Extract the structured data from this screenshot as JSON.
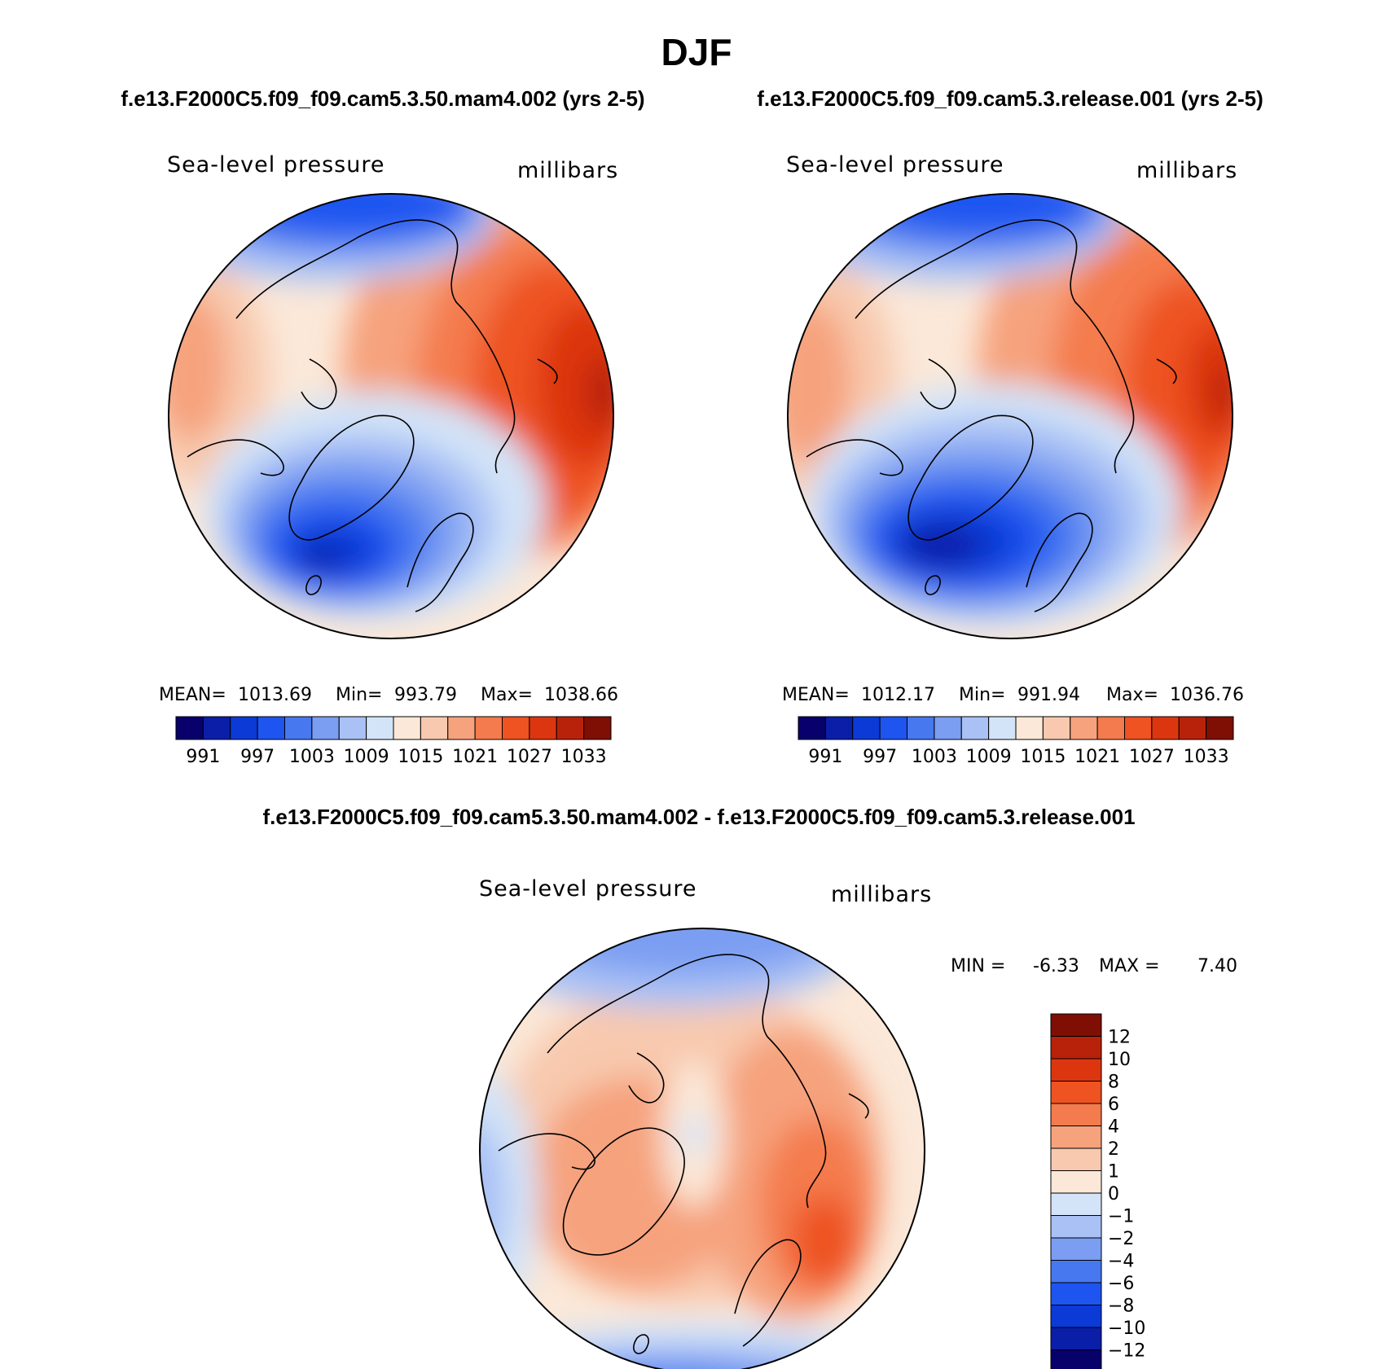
{
  "header": {
    "season": "DJF",
    "left_case": "f.e13.F2000C5.f09_f09.cam5.3.50.mam4.002 (yrs 2-5)",
    "right_case": "f.e13.F2000C5.f09_f09.cam5.3.release.001 (yrs 2-5)",
    "diff_title": "f.e13.F2000C5.f09_f09.cam5.3.50.mam4.002 - f.e13.F2000C5.f09_f09.cam5.3.release.001"
  },
  "chart_data": [
    {
      "type": "heatmap",
      "projection": "polar-stereographic-north",
      "variable": "Sea-level pressure",
      "units": "millibars",
      "stats": {
        "mean_label": "MEAN=",
        "mean": "1013.69",
        "min_label": "Min=",
        "min": "993.79",
        "max_label": "Max=",
        "max": "1038.66"
      },
      "colorbar": {
        "orientation": "horizontal",
        "labels": [
          "991",
          "997",
          "1003",
          "1009",
          "1015",
          "1021",
          "1027",
          "1033"
        ]
      }
    },
    {
      "type": "heatmap",
      "projection": "polar-stereographic-north",
      "variable": "Sea-level pressure",
      "units": "millibars",
      "stats": {
        "mean_label": "MEAN=",
        "mean": "1012.17",
        "min_label": "Min=",
        "min": "991.94",
        "max_label": "Max=",
        "max": "1036.76"
      },
      "colorbar": {
        "orientation": "horizontal",
        "labels": [
          "991",
          "997",
          "1003",
          "1009",
          "1015",
          "1021",
          "1027",
          "1033"
        ]
      }
    },
    {
      "type": "heatmap",
      "projection": "polar-stereographic-north",
      "variable": "Sea-level pressure",
      "units": "millibars",
      "stats": {
        "min_label": "MIN =",
        "min": "-6.33",
        "max_label": "MAX =",
        "max": "7.40"
      },
      "colorbar": {
        "orientation": "vertical",
        "labels": [
          "12",
          "10",
          "8",
          "6",
          "4",
          "2",
          "1",
          "0",
          "−1",
          "−2",
          "−4",
          "−6",
          "−8",
          "−10",
          "−12"
        ]
      }
    }
  ],
  "palette": [
    "#08006b",
    "#0a1ea8",
    "#0b3ad6",
    "#1e55f0",
    "#4778f0",
    "#7b9ef2",
    "#a9c1f5",
    "#d3e4f8",
    "#fbe8d8",
    "#f8c9ae",
    "#f6a27d",
    "#f47b4d",
    "#ee5321",
    "#dc3610",
    "#b8220a",
    "#7f0f04"
  ],
  "diff_palette": [
    "#08006b",
    "#0a1ea8",
    "#0b3ad6",
    "#1e55f0",
    "#4778f0",
    "#7b9ef2",
    "#a9c1f5",
    "#d3e4f8",
    "#fbe8d8",
    "#f8c9ae",
    "#f6a27d",
    "#f47b4d",
    "#ee5321",
    "#dc3610",
    "#b8220a",
    "#7f0f04"
  ]
}
